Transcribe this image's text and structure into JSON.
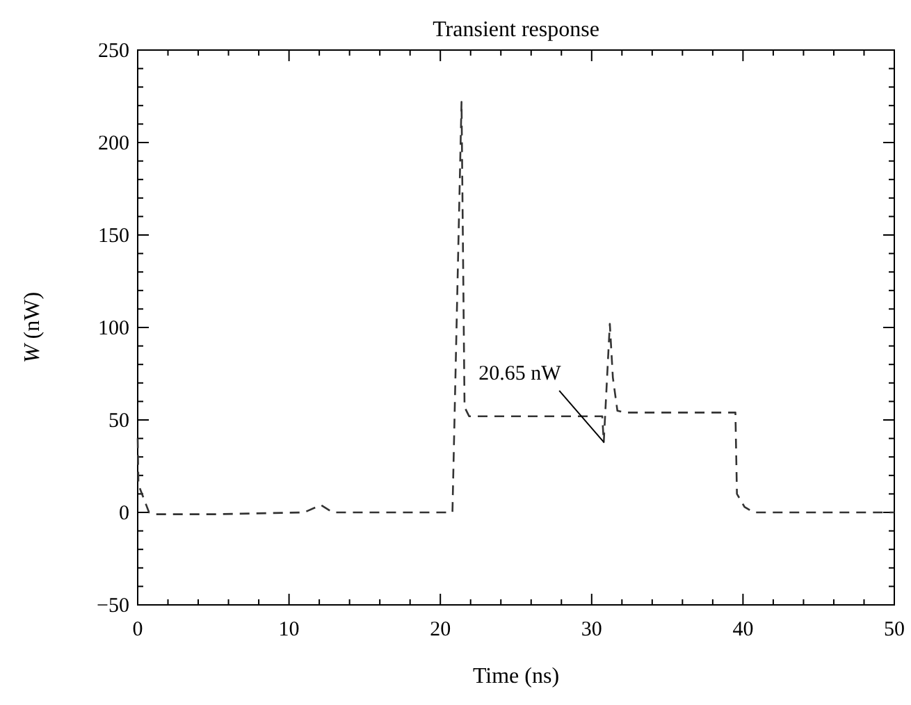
{
  "chart_data": {
    "type": "line",
    "title": "Transient response",
    "xlabel": "Time (ns)",
    "ylabel": "W (nW)",
    "x": [
      0,
      0.05,
      0.75,
      1.2,
      5,
      11,
      12.1,
      12.9,
      20.8,
      21.4,
      21.6,
      21.9,
      30.7,
      30.8,
      31.2,
      31.4,
      31.7,
      32.2,
      39.5,
      39.6,
      40.1,
      40.7,
      50
    ],
    "series": [
      {
        "color": "#333333",
        "values": [
          40,
          15,
          0,
          -1,
          -1,
          0,
          4,
          0,
          0,
          222,
          57,
          52,
          52,
          38,
          102,
          73,
          55,
          54,
          54,
          10,
          3,
          0,
          0
        ]
      }
    ],
    "line_style": "dashed",
    "grid": false,
    "xlim": [
      0,
      50
    ],
    "xticks": [
      0,
      {
        "value": 2,
        "label": null
      },
      {
        "value": 4,
        "label": null
      },
      {
        "value": 6,
        "label": null
      },
      {
        "value": 8,
        "label": null
      },
      10,
      {
        "value": 12,
        "label": null
      },
      {
        "value": 14,
        "label": null
      },
      {
        "value": 16,
        "label": null
      },
      {
        "value": 18,
        "label": null
      },
      20,
      {
        "value": 22,
        "label": null
      },
      {
        "value": 24,
        "label": null
      },
      {
        "value": 26,
        "label": null
      },
      {
        "value": 28,
        "label": null
      },
      30,
      {
        "value": 32,
        "label": null
      },
      {
        "value": 34,
        "label": null
      },
      {
        "value": 36,
        "label": null
      },
      {
        "value": 38,
        "label": null
      },
      40,
      {
        "value": 42,
        "label": null
      },
      {
        "value": 44,
        "label": null
      },
      {
        "value": 46,
        "label": null
      },
      {
        "value": 48,
        "label": null
      },
      50
    ],
    "ylim": [
      -50,
      250
    ],
    "yticks": [
      {
        "value": -50,
        "label": "−50"
      },
      {
        "value": -40,
        "label": null
      },
      {
        "value": -30,
        "label": null
      },
      {
        "value": -20,
        "label": null
      },
      {
        "value": -10,
        "label": null
      },
      0,
      {
        "value": 10,
        "label": null
      },
      {
        "value": 20,
        "label": null
      },
      {
        "value": 30,
        "label": null
      },
      {
        "value": 40,
        "label": null
      },
      50,
      {
        "value": 60,
        "label": null
      },
      {
        "value": 70,
        "label": null
      },
      {
        "value": 80,
        "label": null
      },
      {
        "value": 90,
        "label": null
      },
      100,
      {
        "value": 110,
        "label": null
      },
      {
        "value": 120,
        "label": null
      },
      {
        "value": 130,
        "label": null
      },
      {
        "value": 140,
        "label": null
      },
      150,
      {
        "value": 160,
        "label": null
      },
      {
        "value": 170,
        "label": null
      },
      {
        "value": 180,
        "label": null
      },
      {
        "value": 190,
        "label": null
      },
      200,
      {
        "value": 210,
        "label": null
      },
      {
        "value": 220,
        "label": null
      },
      {
        "value": 230,
        "label": null
      },
      {
        "value": 240,
        "label": null
      },
      250
    ],
    "annotations": [
      {
        "text": "20.65 nW",
        "x": 30.8,
        "y": 38
      }
    ]
  }
}
